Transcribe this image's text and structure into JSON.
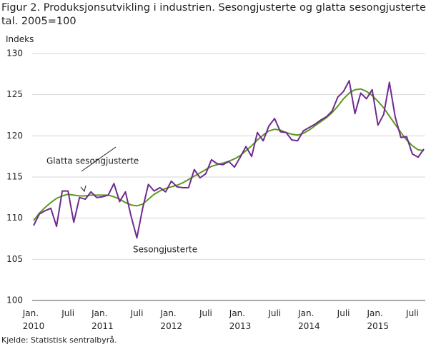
{
  "chart_data": {
    "type": "line",
    "title": "Figur 2. Produksjonsutvikling i industrien. Sesongjusterte og glatta sesongjusterte tal. 2005=100",
    "y_label": "Indeks",
    "source": "Kjelde: Statistisk sentralbyrå.",
    "categories": [
      "Jan.\n2010",
      null,
      null,
      null,
      null,
      null,
      "Juli",
      null,
      null,
      null,
      null,
      null,
      "Jan.\n2011",
      null,
      null,
      null,
      null,
      null,
      "Juli",
      null,
      null,
      null,
      null,
      null,
      "Jan.\n2012",
      null,
      null,
      null,
      null,
      null,
      "Juli",
      null,
      null,
      null,
      null,
      null,
      "Jan.\n2013",
      null,
      null,
      null,
      null,
      null,
      "Juli",
      null,
      null,
      null,
      null,
      null,
      "Jan.\n2014",
      null,
      null,
      null,
      null,
      null,
      "Juli",
      null,
      null,
      null,
      null,
      null,
      "Jan.\n2015",
      null,
      null,
      null,
      null,
      null,
      "Juli",
      null,
      null
    ],
    "series": [
      {
        "name": "Sesongjusterte",
        "color": "#6f2a8f",
        "values": [
          109.1,
          110.5,
          110.9,
          111.2,
          109.0,
          113.3,
          113.3,
          109.5,
          112.5,
          112.3,
          113.2,
          112.5,
          112.6,
          112.8,
          114.2,
          112.0,
          113.2,
          110.2,
          107.6,
          111.2,
          114.1,
          113.3,
          113.7,
          113.2,
          114.5,
          113.8,
          113.7,
          113.7,
          115.9,
          114.9,
          115.4,
          117.1,
          116.6,
          116.5,
          116.9,
          116.2,
          117.4,
          118.7,
          117.5,
          120.4,
          119.4,
          121.2,
          122.1,
          120.5,
          120.4,
          119.5,
          119.4,
          120.6,
          121.0,
          121.4,
          121.9,
          122.3,
          123.0,
          124.7,
          125.4,
          126.7,
          122.7,
          125.2,
          124.5,
          125.6,
          121.3,
          122.6,
          126.5,
          122.3,
          119.8,
          119.9,
          117.8,
          117.4,
          118.4
        ]
      },
      {
        "name": "Glatta sesongjusterte",
        "color": "#5b9a1f",
        "values": [
          109.7,
          110.6,
          111.3,
          111.9,
          112.4,
          112.7,
          112.9,
          112.8,
          112.7,
          112.7,
          112.8,
          112.8,
          112.8,
          112.8,
          112.6,
          112.3,
          111.9,
          111.6,
          111.5,
          111.7,
          112.3,
          112.9,
          113.3,
          113.6,
          113.8,
          114.0,
          114.3,
          114.7,
          115.1,
          115.5,
          115.9,
          116.3,
          116.5,
          116.7,
          116.9,
          117.2,
          117.6,
          118.2,
          118.8,
          119.5,
          120.1,
          120.6,
          120.8,
          120.7,
          120.4,
          120.2,
          120.1,
          120.3,
          120.7,
          121.2,
          121.7,
          122.2,
          122.8,
          123.6,
          124.5,
          125.2,
          125.6,
          125.7,
          125.4,
          124.9,
          124.2,
          123.4,
          122.4,
          121.4,
          120.4,
          119.5,
          118.8,
          118.3,
          118.2
        ]
      }
    ],
    "ylim": [
      100,
      130
    ],
    "yticks": [
      100,
      105,
      110,
      115,
      120,
      125,
      130
    ],
    "grid": true
  }
}
